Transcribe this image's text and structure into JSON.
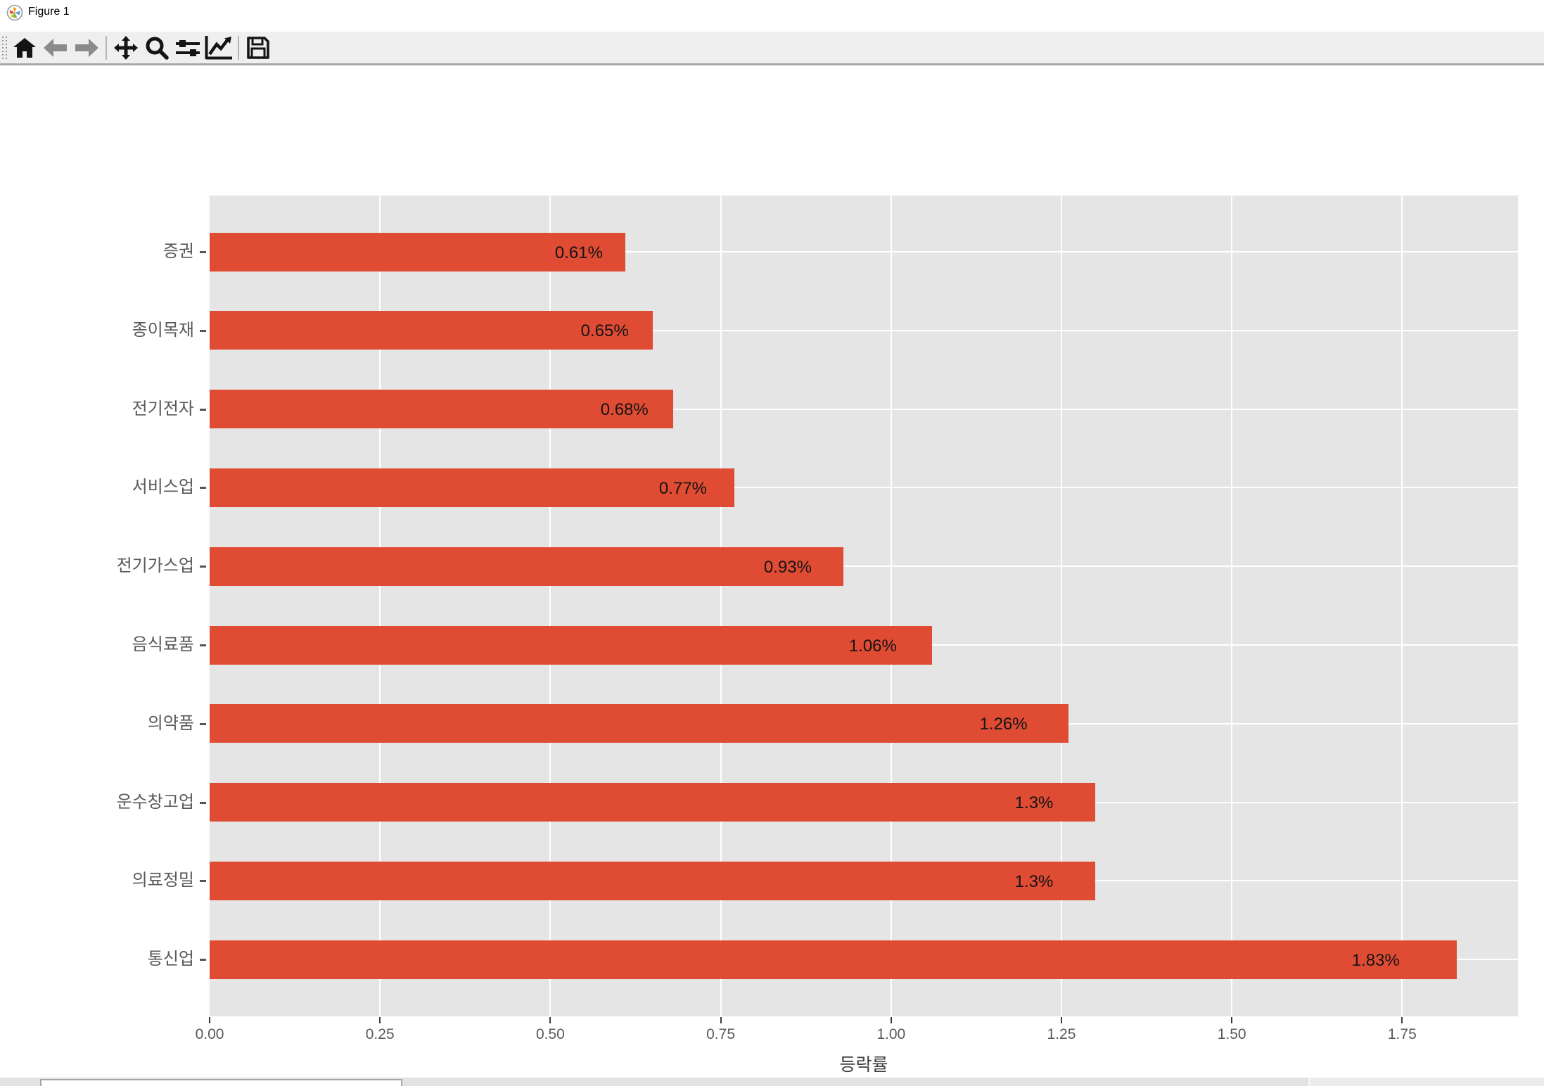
{
  "window": {
    "title": "Figure 1",
    "icon": "matplotlib-logo"
  },
  "toolbar": {
    "buttons": [
      "home",
      "back",
      "forward",
      "pan",
      "zoom",
      "configure-subplots",
      "customize-plot",
      "save"
    ]
  },
  "chart_data": {
    "type": "bar",
    "orientation": "horizontal",
    "title": "",
    "xlabel": "등락률",
    "ylabel": "",
    "categories": [
      "증권",
      "종이목재",
      "전기전자",
      "서비스업",
      "전기가스업",
      "음식료품",
      "의약품",
      "운수창고업",
      "의료정밀",
      "통신업"
    ],
    "values": [
      0.61,
      0.65,
      0.68,
      0.77,
      0.93,
      1.06,
      1.26,
      1.3,
      1.3,
      1.83
    ],
    "bar_labels": [
      "0.61%",
      "0.65%",
      "0.68%",
      "0.77%",
      "0.93%",
      "1.06%",
      "1.26%",
      "1.3%",
      "1.3%",
      "1.83%"
    ],
    "x_ticks": [
      "0.00",
      "0.25",
      "0.50",
      "0.75",
      "1.00",
      "1.25",
      "1.50",
      "1.75"
    ],
    "x_tick_values": [
      0,
      0.25,
      0.5,
      0.75,
      1,
      1.25,
      1.5,
      1.75
    ],
    "xlim": [
      0,
      1.92
    ],
    "grid": true,
    "legend": false,
    "bar_color": "#E04B33",
    "plot_bg_color": "#E5E5E5",
    "grid_color": "#FFFFFF",
    "tick_label_color": "#595959"
  }
}
